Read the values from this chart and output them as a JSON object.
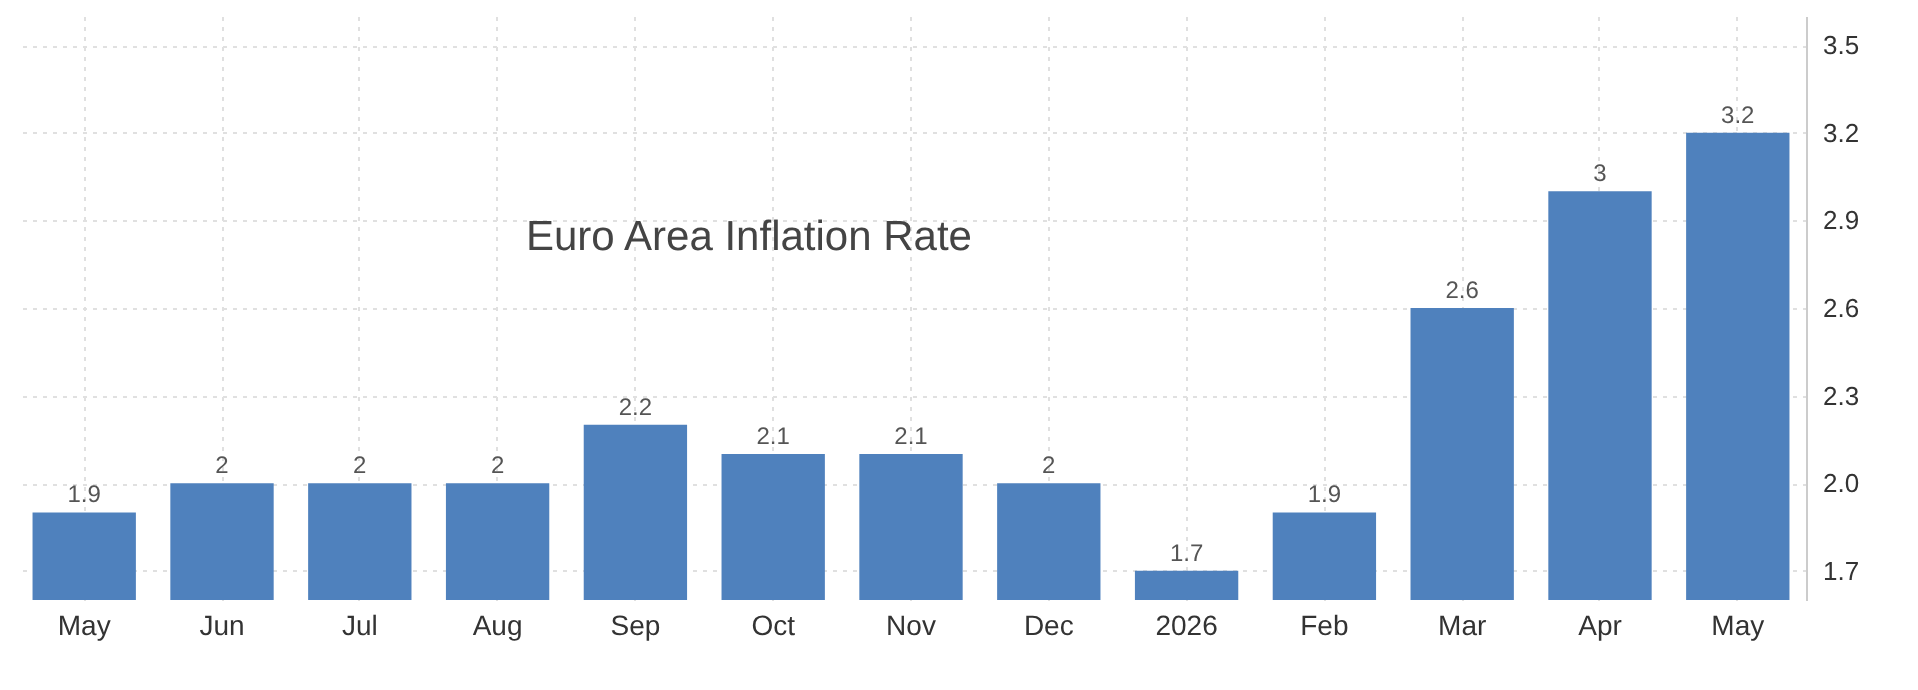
{
  "chart_data": {
    "type": "bar",
    "title": "Euro Area Inflation Rate",
    "categories": [
      "May",
      "Jun",
      "Jul",
      "Aug",
      "Sep",
      "Oct",
      "Nov",
      "Dec",
      "2026",
      "Feb",
      "Mar",
      "Apr",
      "May"
    ],
    "values": [
      1.9,
      2,
      2,
      2,
      2.2,
      2.1,
      2.1,
      2,
      1.7,
      1.9,
      2.6,
      3,
      3.2
    ],
    "color": "#4f81bd",
    "ylim": [
      1.6,
      3.6
    ],
    "yticks": [
      1.7,
      {
        "value": 2,
        "label": "2.0"
      },
      2.3,
      2.6,
      2.9,
      3.2,
      3.5
    ],
    "grid": true,
    "data_labels": true
  }
}
